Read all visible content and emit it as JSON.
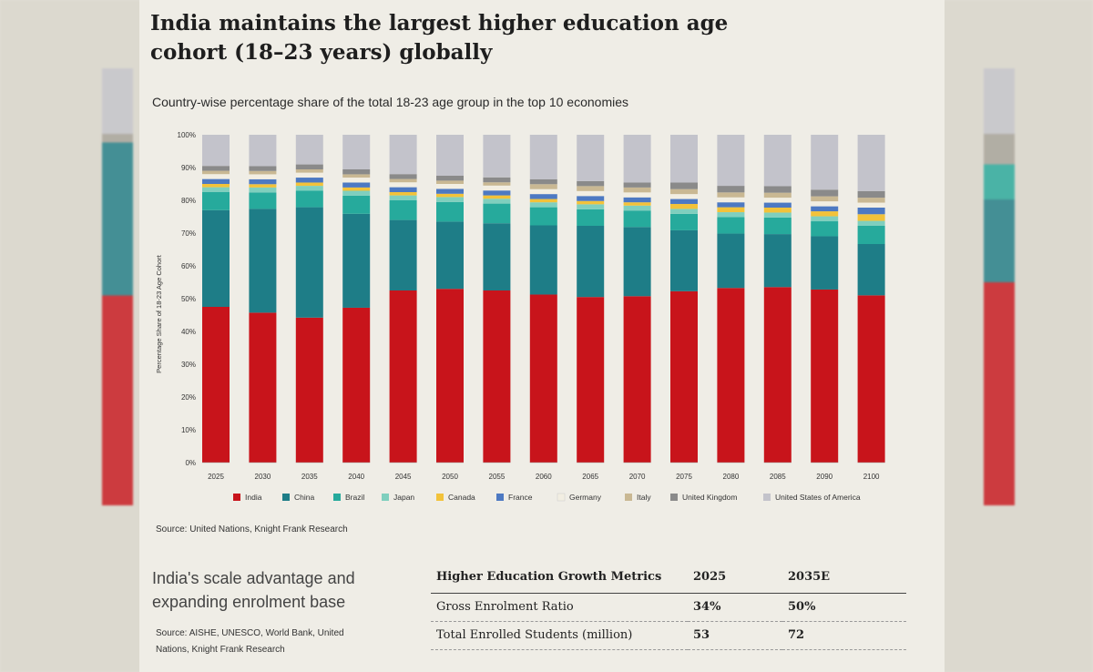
{
  "title": "India maintains the largest higher education age cohort (18–23 years) globally",
  "subtitle": "Country-wise percentage share of the total 18-23 age group in the top 10 economies",
  "source_chart": "Source: United Nations, Knight Frank Research",
  "section_title": "India's scale advantage and expanding enrolment base",
  "source_table": "Source: AISHE, UNESCO, World Bank, United Nations, Knight Frank Research",
  "table": {
    "headers": [
      "Higher Education Growth Metrics",
      "2025",
      "2035E"
    ],
    "rows": [
      {
        "label": "Gross Enrolment Ratio",
        "v2025": "34%",
        "v2035": "50%"
      },
      {
        "label": "Total Enrolled Students (million)",
        "v2025": "53",
        "v2035": "72"
      }
    ]
  },
  "chart_data": {
    "type": "bar",
    "stacked": true,
    "ylabel": "Percentage Share of 18-23 Age Cohort",
    "yticks": [
      "0%",
      "10%",
      "20%",
      "30%",
      "40%",
      "50%",
      "60%",
      "70%",
      "80%",
      "90%",
      "100%"
    ],
    "ylim": [
      0,
      100
    ],
    "categories": [
      "2025",
      "2030",
      "2035",
      "2040",
      "2045",
      "2050",
      "2055",
      "2060",
      "2065",
      "2070",
      "2075",
      "2080",
      "2085",
      "2090",
      "2100"
    ],
    "series": [
      {
        "name": "India",
        "color": "#c8141b",
        "values": [
          47.5,
          45.5,
          44,
          47,
          52.5,
          53,
          52.5,
          51,
          50,
          50.5,
          52,
          53,
          53,
          52,
          50.5
        ]
      },
      {
        "name": "China",
        "color": "#1e7d87",
        "values": [
          29.5,
          31.5,
          33.5,
          28.5,
          21.5,
          20.5,
          20.5,
          21,
          21.5,
          21,
          18.5,
          16.5,
          16,
          16,
          15.5
        ]
      },
      {
        "name": "Brazil",
        "color": "#26aa9c",
        "values": [
          5.5,
          5,
          5,
          5.5,
          6,
          6,
          6,
          5.5,
          5,
          5,
          5,
          5,
          5,
          4.5,
          5.5
        ]
      },
      {
        "name": "Japan",
        "color": "#7fcfbe",
        "values": [
          1.5,
          1.5,
          1.5,
          1.5,
          1.5,
          1.5,
          1.5,
          1.5,
          1.5,
          1.5,
          1.5,
          1.5,
          1.5,
          1.5,
          1.5
        ]
      },
      {
        "name": "Canada",
        "color": "#f2c23a",
        "values": [
          1,
          1,
          1,
          1,
          1,
          1,
          1,
          1,
          1,
          1,
          1.5,
          1.5,
          1.5,
          1.5,
          2
        ]
      },
      {
        "name": "France",
        "color": "#4d79c2",
        "values": [
          1.5,
          1.5,
          1.5,
          1.5,
          1.5,
          1.5,
          1.5,
          1.5,
          1.5,
          1.5,
          1.5,
          1.5,
          1.5,
          1.5,
          2
        ]
      },
      {
        "name": "Germany",
        "color": "#f2eee2",
        "values": [
          1.5,
          1.5,
          1.5,
          1.5,
          1.5,
          1.5,
          1.5,
          1.5,
          1.5,
          1.5,
          1.5,
          1.5,
          1.5,
          1.5,
          1.5
        ]
      },
      {
        "name": "Italy",
        "color": "#c9b893",
        "values": [
          1,
          1,
          1,
          1,
          1,
          1,
          1,
          1.5,
          1.5,
          1.5,
          1.5,
          1.5,
          1.5,
          1.5,
          1.5
        ]
      },
      {
        "name": "United Kingdom",
        "color": "#8a8a8a",
        "values": [
          1.5,
          1.5,
          1.5,
          1.5,
          1.5,
          1.5,
          1.5,
          1.5,
          1.5,
          1.5,
          2,
          2,
          2,
          2,
          2
        ]
      },
      {
        "name": "United States of America",
        "color": "#c3c3cb",
        "values": [
          9.5,
          9.5,
          9,
          10.5,
          12,
          12.5,
          13,
          13.5,
          14,
          14.5,
          14.5,
          15.5,
          15.5,
          16.5,
          17
        ]
      }
    ]
  }
}
